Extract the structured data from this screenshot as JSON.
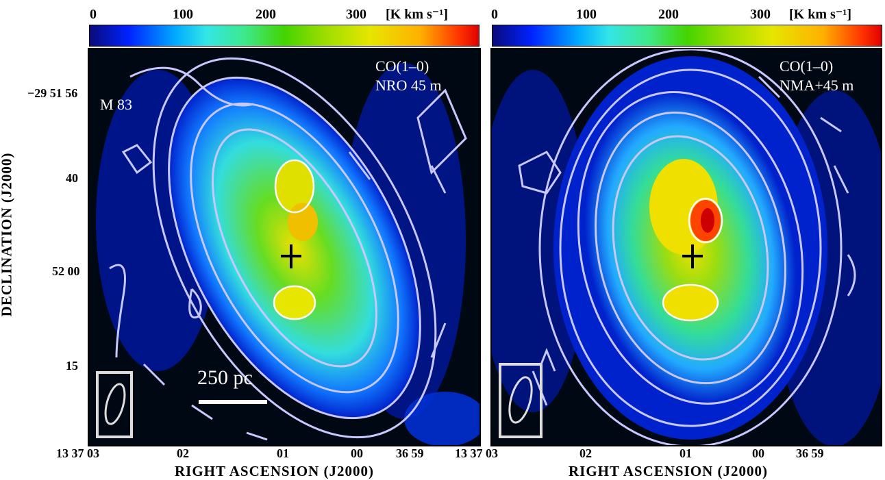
{
  "colorbar": {
    "ticks": [
      "0",
      "100",
      "200",
      "300"
    ],
    "unit": "[K km s⁻¹]"
  },
  "y_axis": {
    "label": "DECLINATION (J2000)",
    "ticks": [
      "−29 51 56",
      "40",
      "52 00",
      "15"
    ]
  },
  "x_axis": {
    "label": "RIGHT ASCENSION (J2000)",
    "ticks_left": [
      "13 37 03",
      "02",
      "01",
      "00",
      "36 59"
    ],
    "ticks_right": [
      "13 37 03",
      "02",
      "01",
      "00",
      "36 59"
    ]
  },
  "left_panel": {
    "galaxy": "M 83",
    "line": "CO(1–0)",
    "instrument": "NRO 45 m",
    "scale_bar": "250 pc"
  },
  "right_panel": {
    "line": "CO(1–0)",
    "instrument": "NMA+45 m"
  },
  "colors": {
    "background_map": "#000814",
    "contour": "#c8c8ff",
    "inner_contour": "#ffffff"
  }
}
